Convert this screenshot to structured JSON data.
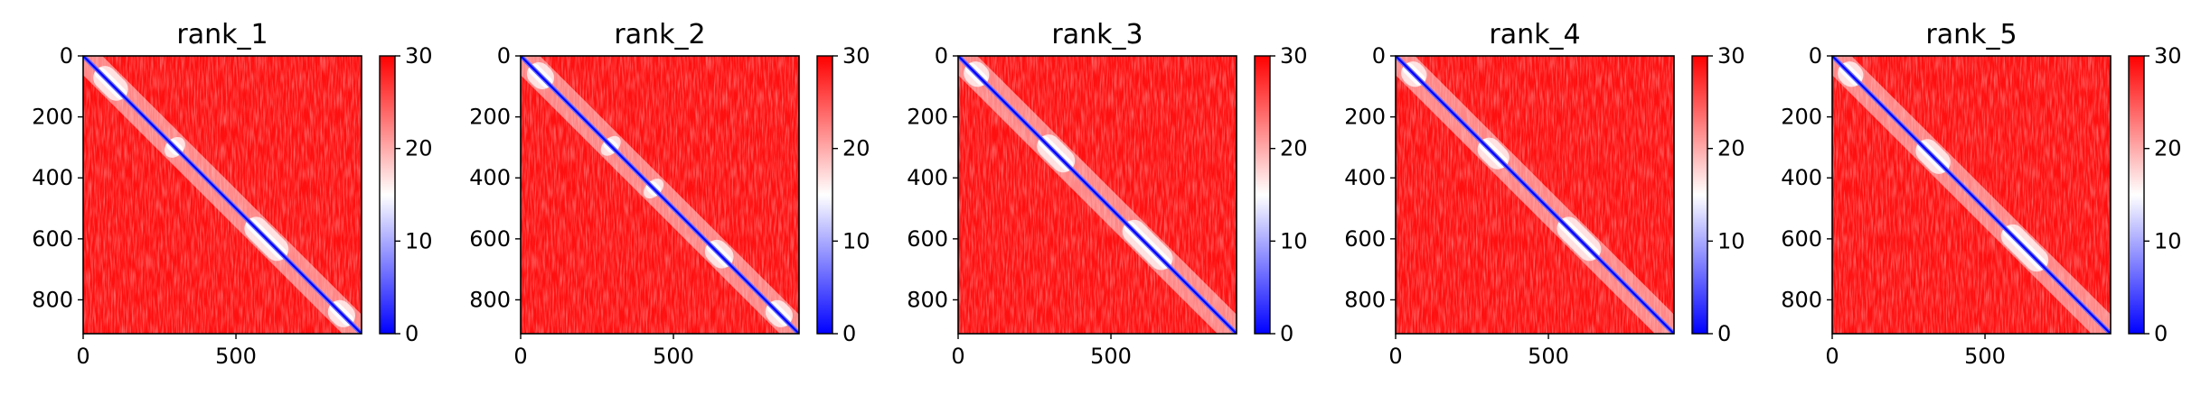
{
  "chart_data": [
    {
      "type": "heatmap",
      "title": "rank_1",
      "xlabel": "",
      "ylabel": "",
      "xlim": [
        0,
        911
      ],
      "ylim": [
        911,
        0
      ],
      "x_ticks": [
        0,
        500
      ],
      "y_ticks": [
        0,
        200,
        400,
        600,
        800
      ],
      "colorbar": {
        "min": 0,
        "max": 30,
        "ticks": [
          0,
          10,
          20,
          30
        ],
        "colors": [
          "#0000ff",
          "#ffffff",
          "#ff0000"
        ]
      },
      "diagonal_value": 0,
      "background_value": 30,
      "domains": [
        [
          0,
          180
        ],
        [
          260,
          340
        ],
        [
          480,
          720
        ],
        [
          780,
          911
        ]
      ]
    },
    {
      "type": "heatmap",
      "title": "rank_2",
      "xlabel": "",
      "ylabel": "",
      "xlim": [
        0,
        911
      ],
      "ylim": [
        911,
        0
      ],
      "x_ticks": [
        0,
        500
      ],
      "y_ticks": [
        0,
        200,
        400,
        600,
        800
      ],
      "colorbar": {
        "min": 0,
        "max": 30,
        "ticks": [
          0,
          10,
          20,
          30
        ],
        "colors": [
          "#0000ff",
          "#ffffff",
          "#ff0000"
        ]
      },
      "diagonal_value": 0,
      "background_value": 30,
      "domains": [
        [
          0,
          130
        ],
        [
          260,
          330
        ],
        [
          400,
          470
        ],
        [
          580,
          720
        ],
        [
          780,
          911
        ]
      ]
    },
    {
      "type": "heatmap",
      "title": "rank_3",
      "xlabel": "",
      "ylabel": "",
      "xlim": [
        0,
        911
      ],
      "ylim": [
        911,
        0
      ],
      "x_ticks": [
        0,
        500
      ],
      "y_ticks": [
        0,
        200,
        400,
        600,
        800
      ],
      "colorbar": {
        "min": 0,
        "max": 30,
        "ticks": [
          0,
          10,
          20,
          30
        ],
        "colors": [
          "#0000ff",
          "#ffffff",
          "#ff0000"
        ]
      },
      "diagonal_value": 0,
      "background_value": 30,
      "domains": [
        [
          0,
          120
        ],
        [
          220,
          420
        ],
        [
          480,
          760
        ]
      ]
    },
    {
      "type": "heatmap",
      "title": "rank_4",
      "xlabel": "",
      "ylabel": "",
      "xlim": [
        0,
        911
      ],
      "ylim": [
        911,
        0
      ],
      "x_ticks": [
        0,
        500
      ],
      "y_ticks": [
        0,
        200,
        400,
        600,
        800
      ],
      "colorbar": {
        "min": 0,
        "max": 30,
        "ticks": [
          0,
          10,
          20,
          30
        ],
        "colors": [
          "#0000ff",
          "#ffffff",
          "#ff0000"
        ]
      },
      "diagonal_value": 0,
      "background_value": 30,
      "domains": [
        [
          0,
          120
        ],
        [
          240,
          400
        ],
        [
          480,
          720
        ]
      ]
    },
    {
      "type": "heatmap",
      "title": "rank_5",
      "xlabel": "",
      "ylabel": "",
      "xlim": [
        0,
        911
      ],
      "ylim": [
        911,
        0
      ],
      "x_ticks": [
        0,
        500
      ],
      "y_ticks": [
        0,
        200,
        400,
        600,
        800
      ],
      "colorbar": {
        "min": 0,
        "max": 30,
        "ticks": [
          0,
          10,
          20,
          30
        ],
        "colors": [
          "#0000ff",
          "#ffffff",
          "#ff0000"
        ]
      },
      "diagonal_value": 0,
      "background_value": 30,
      "domains": [
        [
          0,
          120
        ],
        [
          240,
          420
        ],
        [
          500,
          760
        ]
      ]
    }
  ]
}
